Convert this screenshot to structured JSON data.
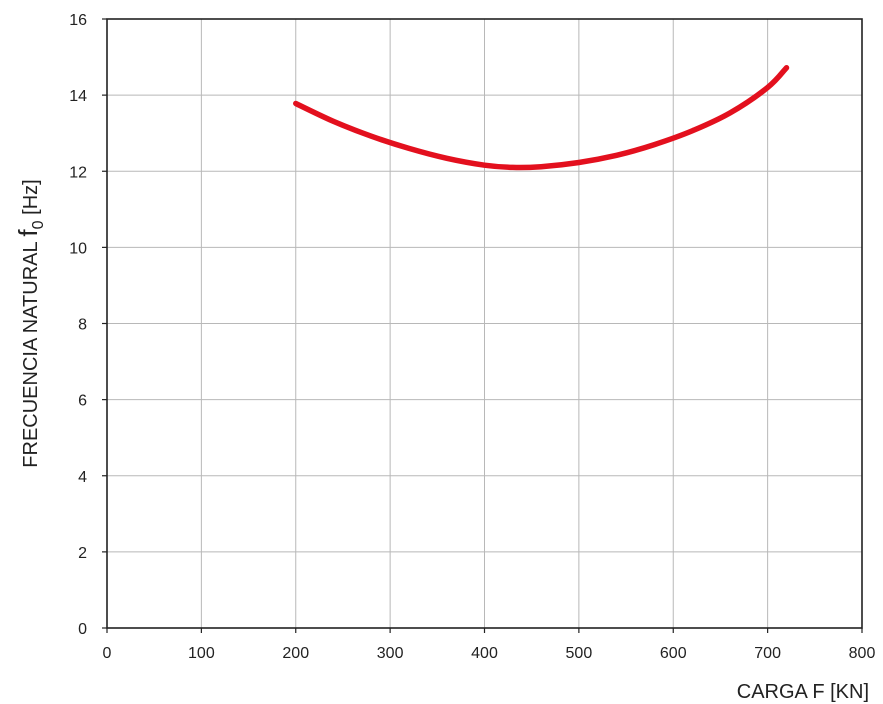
{
  "chart_data": {
    "type": "line",
    "xlabel": "CARGA F [KN]",
    "ylabel": {
      "prefix": "FRECUENCIA NATURAL ",
      "symbol": "f",
      "subscript": "0",
      "suffix": " [Hz]"
    },
    "xlim": [
      0,
      800
    ],
    "ylim": [
      0,
      16
    ],
    "xticks": [
      0,
      100,
      200,
      300,
      400,
      500,
      600,
      700,
      800
    ],
    "yticks": [
      0,
      2,
      4,
      6,
      8,
      10,
      12,
      14,
      16
    ],
    "grid": true,
    "colors": {
      "series": "#e3101e",
      "grid": "#b8b8b8",
      "axis": "#222222"
    },
    "series": [
      {
        "x": [
          200,
          240,
          280,
          320,
          360,
          400,
          430,
          460,
          500,
          540,
          580,
          620,
          660,
          700,
          720
        ],
        "y": [
          13.78,
          13.31,
          12.92,
          12.6,
          12.34,
          12.16,
          12.1,
          12.12,
          12.23,
          12.42,
          12.7,
          13.06,
          13.53,
          14.2,
          14.72
        ]
      }
    ]
  }
}
